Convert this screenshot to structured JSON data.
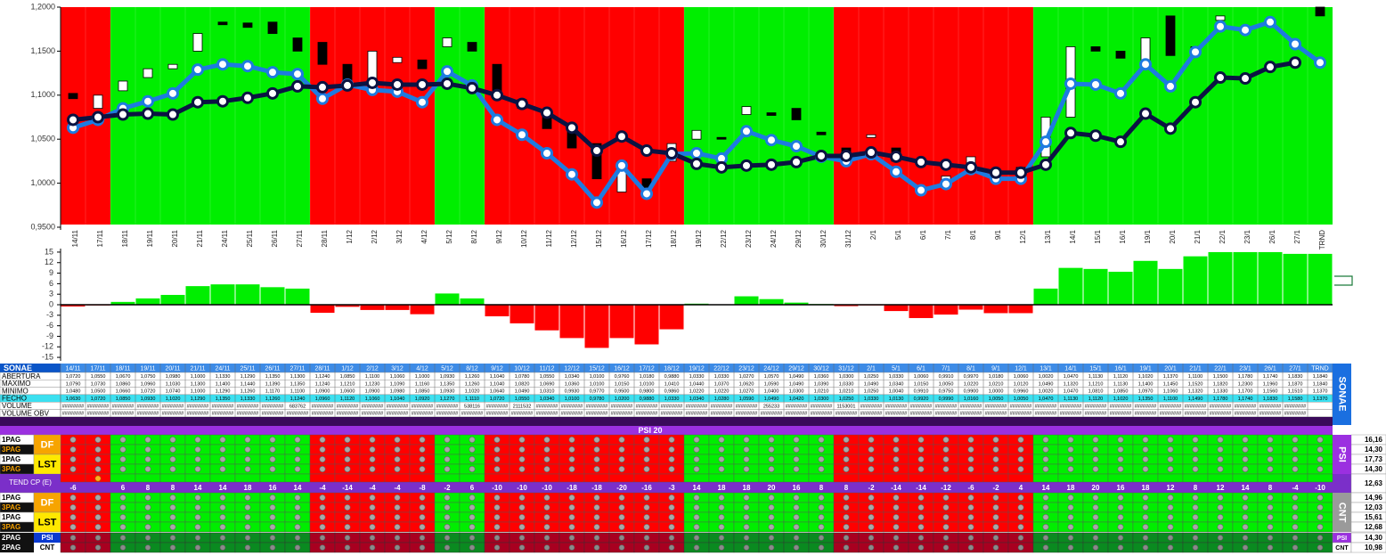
{
  "chart_data": [
    {
      "type": "candlestick",
      "categories": [
        "14/11",
        "17/11",
        "18/11",
        "19/11",
        "20/11",
        "21/11",
        "24/11",
        "25/11",
        "26/11",
        "27/11",
        "28/11",
        "1/12",
        "2/12",
        "3/12",
        "4/12",
        "5/12",
        "8/12",
        "9/12",
        "10/12",
        "11/12",
        "12/12",
        "15/12",
        "16/12",
        "17/12",
        "18/12",
        "19/12",
        "22/12",
        "23/12",
        "24/12",
        "29/12",
        "30/12",
        "31/12",
        "2/1",
        "5/1",
        "6/1",
        "7/1",
        "8/1",
        "9/1",
        "12/1",
        "13/1",
        "14/1",
        "15/1",
        "16/1",
        "19/1",
        "20/1",
        "21/1",
        "22/1",
        "23/1",
        "26/1",
        "27/1",
        "TRND"
      ],
      "open": [
        1.102,
        1.085,
        1.105,
        1.12,
        1.13,
        1.15,
        1.183,
        1.182,
        1.183,
        1.165,
        1.16,
        1.135,
        1.115,
        1.137,
        1.14,
        1.155,
        1.16,
        1.135,
        1.095,
        1.075,
        1.06,
        1.045,
        0.99,
        1.005,
        1.025,
        1.05,
        1.052,
        1.078,
        1.08,
        1.085,
        1.058,
        1.04,
        1.052,
        1.04,
        1.028,
        1.0,
        1.022,
        1.012,
        1.018,
        1.03,
        1.075,
        1.155,
        1.15,
        1.135,
        1.19,
        1.155,
        1.185,
        null,
        null,
        null,
        1.2
      ],
      "close": [
        1.096,
        1.1,
        1.116,
        1.13,
        1.135,
        1.17,
        1.18,
        1.177,
        1.17,
        1.15,
        1.135,
        1.115,
        1.15,
        1.143,
        1.13,
        1.165,
        1.15,
        1.1,
        1.085,
        1.062,
        1.04,
        1.005,
        1.025,
        0.995,
        1.045,
        1.06,
        1.05,
        1.087,
        1.077,
        1.072,
        1.055,
        1.028,
        1.055,
        1.025,
        1.02,
        1.008,
        1.03,
        1.005,
        1.01,
        1.075,
        1.155,
        1.15,
        1.142,
        1.165,
        1.145,
        1.15,
        1.19,
        null,
        null,
        null,
        1.19
      ],
      "up_color": "#ffffff",
      "down_color": "#000000",
      "series": [
        {
          "color": "#1e7be0",
          "values": [
            1.063,
            1.072,
            1.085,
            1.093,
            1.102,
            1.129,
            1.135,
            1.133,
            1.126,
            1.124,
            1.096,
            1.112,
            1.106,
            1.104,
            1.092,
            1.127,
            1.111,
            1.072,
            1.055,
            1.034,
            1.01,
            0.978,
            1.02,
            0.988,
            1.033,
            1.034,
            1.028,
            1.059,
            1.049,
            1.042,
            1.03,
            1.025,
            1.033,
            1.013,
            0.992,
            0.999,
            1.016,
            1.005,
            1.005,
            1.047,
            1.113,
            1.112,
            1.102,
            1.135,
            1.11,
            1.149,
            1.178,
            1.174,
            1.183,
            1.158,
            1.137
          ]
        },
        {
          "color": "#0b1342",
          "values": [
            1.072,
            1.075,
            1.078,
            1.079,
            1.078,
            1.092,
            1.093,
            1.097,
            1.102,
            1.11,
            1.109,
            1.111,
            1.114,
            1.112,
            1.112,
            1.113,
            1.108,
            1.1,
            1.09,
            1.08,
            1.063,
            1.037,
            1.053,
            1.037,
            1.034,
            1.022,
            1.018,
            1.02,
            1.021,
            1.024,
            1.031,
            1.031,
            1.035,
            1.03,
            1.024,
            1.021,
            1.018,
            1.012,
            1.012,
            1.021,
            1.057,
            1.054,
            1.047,
            1.079,
            1.062,
            1.092,
            1.12,
            1.119,
            1.132,
            1.137,
            null
          ]
        }
      ],
      "ylim": [
        0.95,
        1.2
      ],
      "yticks": [
        {
          "value": 0.95,
          "label": "0,9500"
        },
        {
          "value": 1.0,
          "label": "1,0000"
        },
        {
          "value": 1.05,
          "label": "1,0500"
        },
        {
          "value": 1.1,
          "label": "1,1000"
        },
        {
          "value": 1.15,
          "label": "1,1500"
        },
        {
          "value": 1.2,
          "label": "1,2000"
        }
      ]
    },
    {
      "type": "bar",
      "values": [
        -0.5,
        -0.2,
        0.8,
        1.8,
        2.8,
        5.3,
        5.8,
        5.8,
        5,
        4.6,
        -2.3,
        -0.6,
        -1.5,
        -1.5,
        -2.7,
        3.2,
        1.8,
        -3.3,
        -5.3,
        -7.3,
        -9.5,
        -12.3,
        -9.5,
        -11.3,
        -7,
        0.3,
        0.1,
        2.4,
        1.6,
        0.6,
        0.2,
        -0.4,
        -0.2,
        -1.8,
        -3.8,
        -2.8,
        -1.4,
        -2.4,
        -2.4,
        4.6,
        10.5,
        10.2,
        9.4,
        12.5,
        10.2,
        13.8,
        15,
        15,
        15,
        14.5,
        14.5
      ],
      "positive_color": "#00ee00",
      "negative_color": "#ff0000",
      "ylim": [
        -16,
        16
      ],
      "yticks": [
        15,
        12,
        9,
        6,
        3,
        0,
        -3,
        -6,
        -9,
        -12,
        -15
      ]
    }
  ],
  "table": {
    "header": "SONAE",
    "rows": [
      {
        "label": "ABERTURA",
        "cells": [
          "1,0720",
          "1,0550",
          "1,0670",
          "1,0750",
          "1,0980",
          "1,1000",
          "1,1330",
          "1,1290",
          "1,1350",
          "1,1300",
          "1,1240",
          "1,0850",
          "1,1100",
          "1,1060",
          "1,1000",
          "1,0930",
          "1,1260",
          "1,1040",
          "1,0780",
          "1,0550",
          "1,0340",
          "1,0100",
          "0,9760",
          "1,0180",
          "0,9880",
          "1,0330",
          "1,0330",
          "1,0270",
          "1,0570",
          "1,0490",
          "1,0360",
          "1,0300",
          "1,0250",
          "1,0330",
          "1,0060",
          "0,9910",
          "0,9970",
          "1,0180",
          "1,0060",
          "1,0020",
          "1,0470",
          "1,1130",
          "1,1120",
          "1,1020",
          "1,1370",
          "1,1100",
          "1,1500",
          "1,1780",
          "1,1740",
          "1,1830",
          "1,1840"
        ]
      },
      {
        "label": "MAXIMO",
        "cells": [
          "1,0790",
          "1,0730",
          "1,0860",
          "1,0960",
          "1,1030",
          "1,1300",
          "1,1400",
          "1,1440",
          "1,1390",
          "1,1350",
          "1,1240",
          "1,1210",
          "1,1230",
          "1,1090",
          "1,1160",
          "1,1350",
          "1,1260",
          "1,1040",
          "1,0820",
          "1,0690",
          "1,0360",
          "1,0100",
          "1,0150",
          "1,0100",
          "1,0410",
          "1,0440",
          "1,0370",
          "1,0620",
          "1,0590",
          "1,0490",
          "1,0390",
          "1,0330",
          "1,0490",
          "1,0340",
          "1,0150",
          "1,0050",
          "1,0220",
          "1,0210",
          "1,0120",
          "1,0490",
          "1,1320",
          "1,1210",
          "1,1130",
          "1,1400",
          "1,1450",
          "1,1520",
          "1,1820",
          "1,2300",
          "1,1960",
          "1,1870",
          "1,1840"
        ]
      },
      {
        "label": "MINIMO",
        "cells": [
          "1,0480",
          "1,0500",
          "1,0660",
          "1,0720",
          "1,0740",
          "1,1000",
          "1,1290",
          "1,1260",
          "1,1170",
          "1,1100",
          "1,0900",
          "1,0600",
          "1,0900",
          "1,0980",
          "1,0850",
          "1,0930",
          "1,1020",
          "1,0640",
          "1,0490",
          "1,0310",
          "0,9930",
          "0,9770",
          "0,9500",
          "0,9800",
          "0,9860",
          "1,0220",
          "1,0220",
          "1,0270",
          "1,0400",
          "1,0300",
          "1,0210",
          "1,0210",
          "1,0250",
          "1,0040",
          "0,9910",
          "0,9750",
          "0,9900",
          "1,0000",
          "0,9960",
          "1,0020",
          "1,0470",
          "1,0810",
          "1,0850",
          "1,0970",
          "1,1060",
          "1,1320",
          "1,1330",
          "1,1700",
          "1,1560",
          "1,1510",
          "1,1370"
        ]
      },
      {
        "label": "FECHO",
        "cells": [
          "1,0630",
          "1,0720",
          "1,0850",
          "1,0930",
          "1,1020",
          "1,1290",
          "1,1350",
          "1,1330",
          "1,1260",
          "1,1240",
          "1,0960",
          "1,1120",
          "1,1060",
          "1,1040",
          "1,0920",
          "1,1270",
          "1,1110",
          "1,0720",
          "1,0550",
          "1,0340",
          "1,0100",
          "0,9780",
          "1,0200",
          "0,9880",
          "1,0330",
          "1,0340",
          "1,0280",
          "1,0590",
          "1,0490",
          "1,0420",
          "1,0300",
          "1,0250",
          "1,0330",
          "1,0130",
          "0,9920",
          "0,9990",
          "1,0160",
          "1,0050",
          "1,0050",
          "1,0470",
          "1,1130",
          "1,1120",
          "1,1020",
          "1,1350",
          "1,1100",
          "1,1490",
          "1,1780",
          "1,1740",
          "1,1830",
          "1,1580",
          "1,1370"
        ]
      },
      {
        "label": "VOLUME",
        "cells": [
          "########",
          "########",
          "########",
          "########",
          "########",
          "########",
          "########",
          "########",
          "########",
          "683762",
          "########",
          "########",
          "########",
          "########",
          "########",
          "########",
          "538116",
          "########",
          "2111532",
          "########",
          "########",
          "########",
          "########",
          "########",
          "########",
          "########",
          "########",
          "########",
          "255233",
          "########",
          "########",
          "1153001",
          "########",
          "########",
          "########",
          "########",
          "########",
          "########",
          "########",
          "########",
          "########",
          "########",
          "########",
          "########",
          "########",
          "########",
          "########",
          "########",
          "########",
          "########",
          null
        ]
      },
      {
        "label": "VOLUME OBV",
        "cells": [
          "########",
          "########",
          "########",
          "########",
          "########",
          "########",
          "########",
          "########",
          "########",
          "########",
          "########",
          "########",
          "########",
          "########",
          "########",
          "########",
          "########",
          "########",
          "########",
          "########",
          "########",
          "########",
          "########",
          "########",
          "########",
          "########",
          "########",
          "########",
          "########",
          "########",
          "########",
          "########",
          "########",
          "########",
          "########",
          "########",
          "########",
          "########",
          "########",
          "########",
          "########",
          "########",
          "########",
          "########",
          "########",
          "########",
          "########",
          "########",
          "########",
          "########",
          null
        ]
      }
    ],
    "psi_title": "PSI 20",
    "psi_rows": [
      {
        "label": "1PAG",
        "value": "16,16"
      },
      {
        "label": "3PAG",
        "value": "14,30"
      },
      {
        "label": "1PAG",
        "value": "17,73"
      },
      {
        "label": "3PAG",
        "value": "14,30"
      }
    ],
    "psi_groups": [
      "DF",
      "LST"
    ],
    "trend": {
      "label": "TEND CP (E)",
      "value": "12,63",
      "values": [
        -6,
        null,
        6,
        8,
        8,
        14,
        14,
        18,
        16,
        14,
        -4,
        -14,
        -4,
        -4,
        -8,
        -2,
        6,
        -10,
        -10,
        -10,
        -18,
        -18,
        -20,
        -16,
        -3,
        14,
        18,
        18,
        20,
        16,
        8,
        8,
        -2,
        -14,
        -14,
        -12,
        -6,
        -2,
        4,
        14,
        18,
        20,
        16,
        18,
        12,
        8,
        12,
        14,
        8,
        -4,
        -10
      ]
    },
    "cnt_rows": [
      {
        "label": "1PAG",
        "value": "14,96"
      },
      {
        "label": "3PAG",
        "value": "12,03"
      },
      {
        "label": "1PAG",
        "value": "15,61"
      },
      {
        "label": "3PAG",
        "value": "12,68"
      }
    ],
    "cnt_groups": [
      "DF",
      "LST"
    ],
    "bottom_rows": [
      {
        "label": "2PAG",
        "tag": "PSI",
        "value": "14,30"
      },
      {
        "label": "2PAG",
        "tag": "CNT",
        "value": "10,98"
      }
    ],
    "side_labels": [
      "PSI",
      "CNT"
    ]
  }
}
